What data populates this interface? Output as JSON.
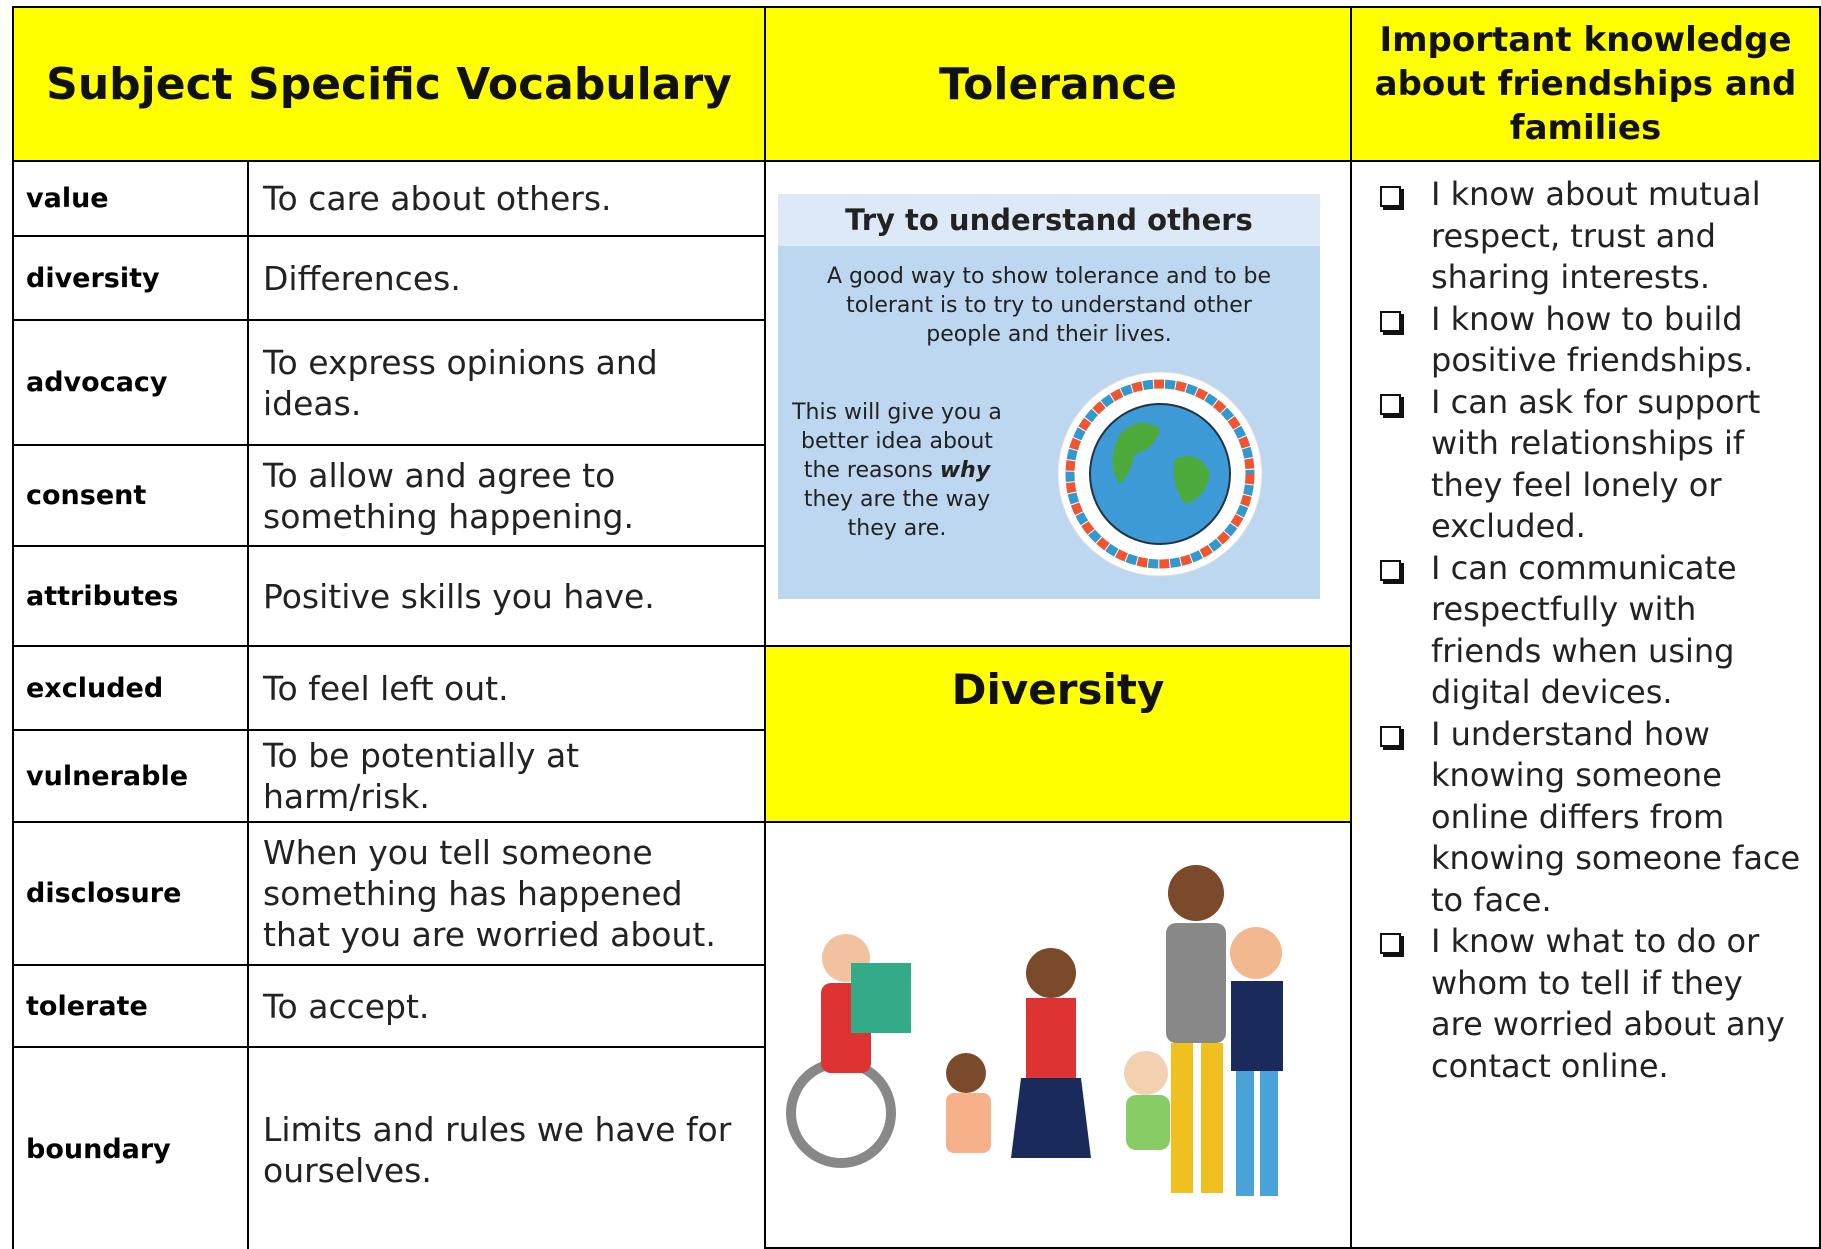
{
  "header": {
    "vocabulary_title": "Subject Specific Vocabulary",
    "tolerance_title": "Tolerance",
    "knowledge_title": "Important knowledge about friendships and families"
  },
  "vocabulary": [
    {
      "term": "value",
      "definition": "To care about others."
    },
    {
      "term": "diversity",
      "definition": "Differences."
    },
    {
      "term": "advocacy",
      "definition": "To express opinions and ideas."
    },
    {
      "term": "consent",
      "definition": "To allow and agree to something happening."
    },
    {
      "term": "attributes",
      "definition": "Positive skills you have."
    },
    {
      "term": "excluded",
      "definition": "To feel left out."
    },
    {
      "term": "vulnerable",
      "definition": "To be potentially at harm/risk."
    },
    {
      "term": "disclosure",
      "definition": "When you tell someone something has happened that you are worried about."
    },
    {
      "term": "tolerate",
      "definition": "To accept."
    },
    {
      "term": "boundary",
      "definition": "Limits and rules we have for ourselves."
    }
  ],
  "tolerance_card": {
    "title": "Try to understand others",
    "text": "A good way to show tolerance and to be tolerant is to try to understand other people and their lives.",
    "side_text_before": "This will give you a better idea about the reasons ",
    "side_text_emphasis": "why",
    "side_text_after": " they are the way they are."
  },
  "diversity_title": "Diversity",
  "knowledge": [
    "I know about mutual respect, trust and sharing interests.",
    "I know how to build positive friendships.",
    "I can ask for support with relationships if they feel lonely or excluded.",
    "I can communicate respectfully with friends when using digital devices.",
    "I understand how knowing someone online differs from knowing someone face to face.",
    "I know what to do or whom to tell if they are worried about any contact online."
  ]
}
